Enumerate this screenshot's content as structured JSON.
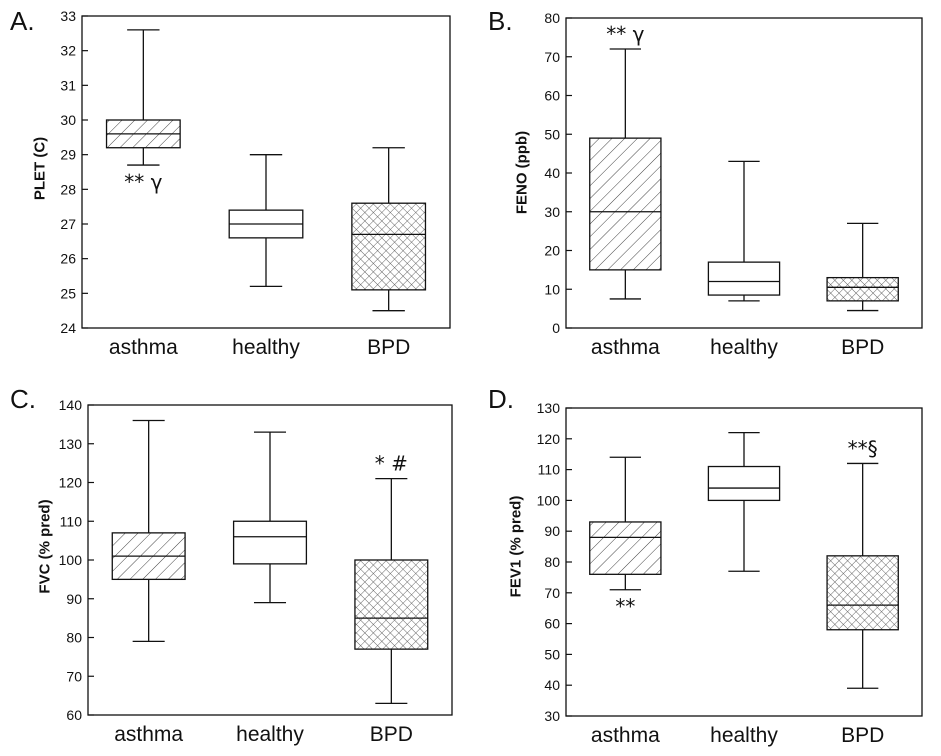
{
  "chart_data": [
    {
      "panel": "A.",
      "type": "box",
      "ylabel": "PLET (C)",
      "ylim": [
        24,
        33
      ],
      "yticks": [
        24,
        25,
        26,
        27,
        28,
        29,
        30,
        31,
        32,
        33
      ],
      "categories": [
        "asthma",
        "healthy",
        "BPD"
      ],
      "boxes": [
        {
          "min": 28.7,
          "q1": 29.2,
          "median": 29.6,
          "q3": 30.0,
          "max": 32.6,
          "pattern": "diagonal"
        },
        {
          "min": 25.2,
          "q1": 26.6,
          "median": 27.0,
          "q3": 27.4,
          "max": 29.0,
          "pattern": "none"
        },
        {
          "min": 24.5,
          "q1": 25.1,
          "median": 26.7,
          "q3": 27.6,
          "max": 29.2,
          "pattern": "crosshatch"
        }
      ],
      "annotations": [
        {
          "text": "** γ",
          "category": 0,
          "anchor": "below-min"
        }
      ]
    },
    {
      "panel": "B.",
      "type": "box",
      "ylabel": "FENO (ppb)",
      "ylim": [
        0,
        80
      ],
      "yticks": [
        0,
        10,
        20,
        30,
        40,
        50,
        60,
        70,
        80
      ],
      "categories": [
        "asthma",
        "healthy",
        "BPD"
      ],
      "boxes": [
        {
          "min": 7.5,
          "q1": 15,
          "median": 30,
          "q3": 49,
          "max": 72,
          "pattern": "diagonal"
        },
        {
          "min": 7,
          "q1": 8.5,
          "median": 12,
          "q3": 17,
          "max": 43,
          "pattern": "none"
        },
        {
          "min": 4.5,
          "q1": 7,
          "median": 10.5,
          "q3": 13,
          "max": 27,
          "pattern": "crosshatch"
        }
      ],
      "annotations": [
        {
          "text": "** γ",
          "category": 0,
          "anchor": "above-max"
        }
      ]
    },
    {
      "panel": "C.",
      "type": "box",
      "ylabel": "FVC (% pred)",
      "ylim": [
        60,
        140
      ],
      "yticks": [
        60,
        70,
        80,
        90,
        100,
        110,
        120,
        130,
        140
      ],
      "categories": [
        "asthma",
        "healthy",
        "BPD"
      ],
      "boxes": [
        {
          "min": 79,
          "q1": 95,
          "median": 101,
          "q3": 107,
          "max": 136,
          "pattern": "diagonal"
        },
        {
          "min": 89,
          "q1": 99,
          "median": 106,
          "q3": 110,
          "max": 133,
          "pattern": "none"
        },
        {
          "min": 63,
          "q1": 77,
          "median": 85,
          "q3": 100,
          "max": 121,
          "pattern": "crosshatch"
        }
      ],
      "annotations": [
        {
          "text": "* #",
          "category": 2,
          "anchor": "above-max"
        }
      ]
    },
    {
      "panel": "D.",
      "type": "box",
      "ylabel": "FEV1 (% pred)",
      "ylim": [
        30,
        130
      ],
      "yticks": [
        30,
        40,
        50,
        60,
        70,
        80,
        90,
        100,
        110,
        120,
        130
      ],
      "categories": [
        "asthma",
        "healthy",
        "BPD"
      ],
      "boxes": [
        {
          "min": 71,
          "q1": 76,
          "median": 88,
          "q3": 93,
          "max": 114,
          "pattern": "diagonal"
        },
        {
          "min": 77,
          "q1": 100,
          "median": 104,
          "q3": 111,
          "max": 122,
          "pattern": "none"
        },
        {
          "min": 39,
          "q1": 58,
          "median": 66,
          "q3": 82,
          "max": 112,
          "pattern": "crosshatch"
        }
      ],
      "annotations": [
        {
          "text": "**",
          "category": 0,
          "anchor": "below-min"
        },
        {
          "text": "**§",
          "category": 2,
          "anchor": "above-max"
        }
      ]
    }
  ]
}
